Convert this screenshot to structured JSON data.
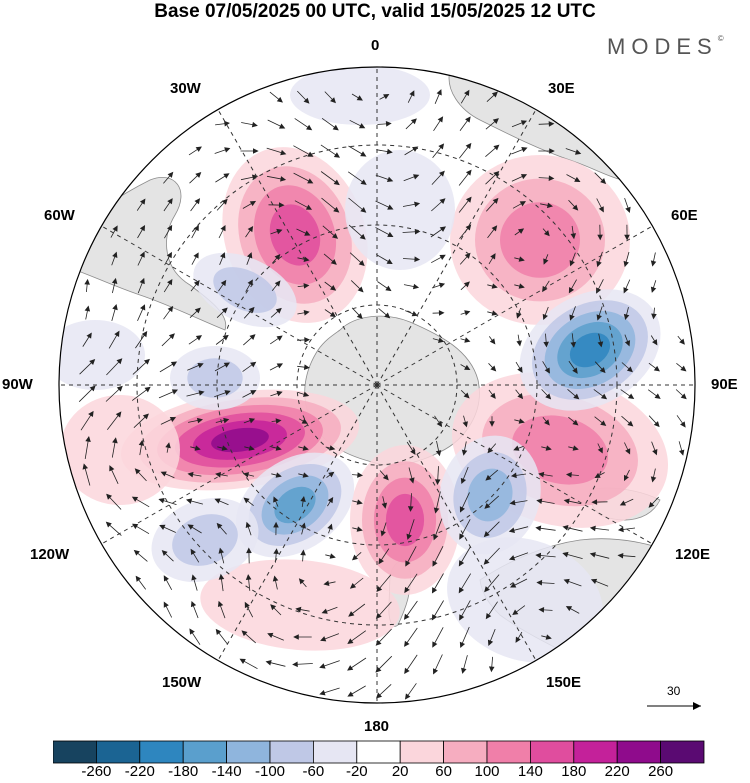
{
  "header": {
    "title": "Base 07/05/2025 00 UTC, valid 15/05/2025 12 UTC",
    "brand": "MODES",
    "brand_mark": "©"
  },
  "map": {
    "projection": "south-polar-stereographic",
    "longitude_labels": {
      "top": "0",
      "bottom": "180",
      "left": "90W",
      "right": "90E",
      "upper_left_30": "30W",
      "upper_right_30": "30E",
      "upper_left_60": "60W",
      "upper_right_60": "60E",
      "lower_left_120": "120W",
      "lower_right_120": "120E",
      "lower_left_150": "150W",
      "lower_right_150": "150E"
    },
    "reference_vector": "30",
    "colors": {
      "land": "#e4e4e4",
      "coast": "#8c8c8c",
      "grid": "#333333"
    }
  },
  "colorbar": {
    "levels": [
      "-260",
      "-220",
      "-180",
      "-140",
      "-100",
      "-60",
      "-20",
      "20",
      "60",
      "100",
      "140",
      "180",
      "220",
      "260"
    ],
    "colors": [
      "#17435f",
      "#1b6493",
      "#2e86bf",
      "#5a9fcd",
      "#8fb5dd",
      "#bfc8e6",
      "#e6e6f3",
      "#ffffff",
      "#fbd6dc",
      "#f6adc0",
      "#f07fa9",
      "#e04d9e",
      "#c4219a",
      "#8f0b8c",
      "#5a0a72"
    ]
  }
}
